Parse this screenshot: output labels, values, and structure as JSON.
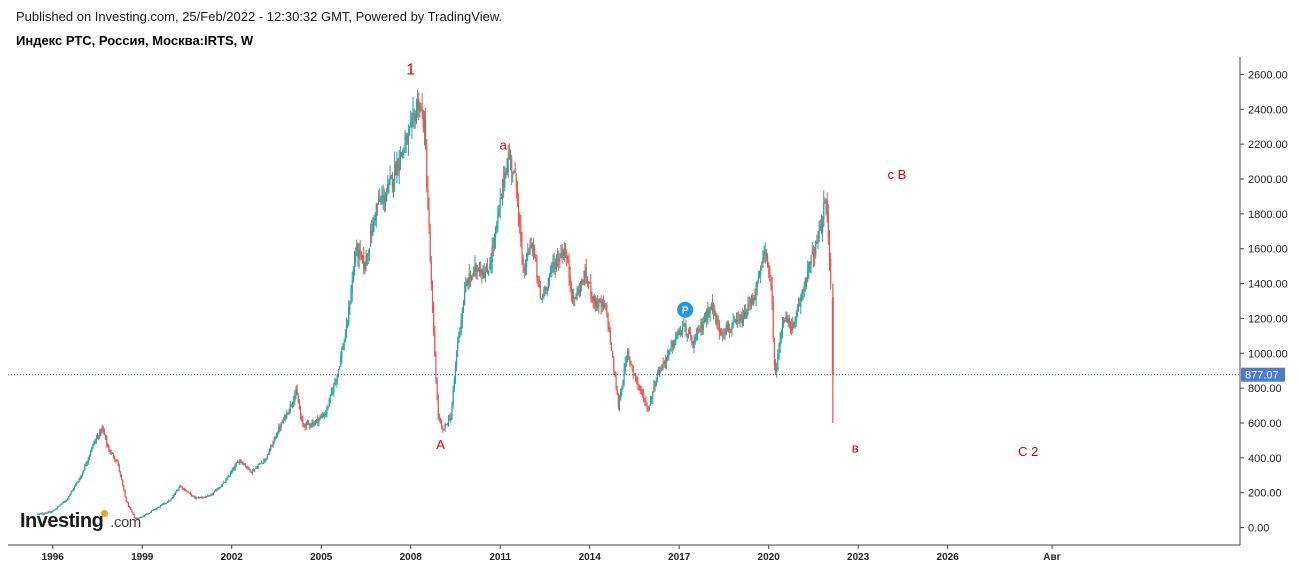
{
  "header": {
    "published": "Published on Investing.com, 25/Feb/2022 - 12:30:32 GMT, Powered by TradingView.",
    "title": "Индекс РТС, Россия, Москва:IRTS, W"
  },
  "logo": {
    "brand": "Investing",
    "tld": ".com"
  },
  "colors": {
    "up": "#26a69a",
    "down": "#ef5350",
    "price_line": "#1f4e8c",
    "price_tag_bg": "#4a7bd0",
    "annotation": "#e00000",
    "marker": "#2196f3"
  },
  "chart_data": {
    "type": "candlestick",
    "title": "Индекс РТС, Россия, Москва:IRTS, W",
    "xlabel": "",
    "ylabel": "",
    "ylim": [
      -100,
      2700
    ],
    "xlim": [
      1994.5,
      2035.8
    ],
    "grid": false,
    "y_ticks": [
      "2600.00",
      "2400.00",
      "2200.00",
      "2000.00",
      "1800.00",
      "1600.00",
      "1400.00",
      "1200.00",
      "1000.00",
      "800.00",
      "600.00",
      "400.00",
      "200.00",
      "0.00"
    ],
    "x_ticks": [
      {
        "label": "1996",
        "x": 1996
      },
      {
        "label": "1999",
        "x": 1999
      },
      {
        "label": "2002",
        "x": 2002
      },
      {
        "label": "2005",
        "x": 2005
      },
      {
        "label": "2008",
        "x": 2008
      },
      {
        "label": "2011",
        "x": 2011
      },
      {
        "label": "2014",
        "x": 2014
      },
      {
        "label": "2017",
        "x": 2017
      },
      {
        "label": "2020",
        "x": 2020
      },
      {
        "label": "2023",
        "x": 2023
      },
      {
        "label": "2026",
        "x": 2026
      },
      {
        "label": "Авг",
        "x": 2029.5
      }
    ],
    "last_price": 877.07,
    "last_price_label": "877.07",
    "path": [
      [
        1995.5,
        75
      ],
      [
        1996.0,
        90
      ],
      [
        1996.5,
        160
      ],
      [
        1997.0,
        300
      ],
      [
        1997.4,
        480
      ],
      [
        1997.7,
        570
      ],
      [
        1997.9,
        450
      ],
      [
        1998.2,
        380
      ],
      [
        1998.5,
        150
      ],
      [
        1998.8,
        50
      ],
      [
        1999.0,
        60
      ],
      [
        1999.5,
        110
      ],
      [
        2000.0,
        160
      ],
      [
        2000.3,
        240
      ],
      [
        2000.8,
        170
      ],
      [
        2001.3,
        180
      ],
      [
        2001.8,
        260
      ],
      [
        2002.3,
        390
      ],
      [
        2002.7,
        320
      ],
      [
        2003.2,
        400
      ],
      [
        2003.6,
        560
      ],
      [
        2003.9,
        660
      ],
      [
        2004.2,
        780
      ],
      [
        2004.4,
        590
      ],
      [
        2004.8,
        600
      ],
      [
        2005.2,
        660
      ],
      [
        2005.6,
        900
      ],
      [
        2005.9,
        1150
      ],
      [
        2006.2,
        1600
      ],
      [
        2006.5,
        1500
      ],
      [
        2006.9,
        1850
      ],
      [
        2007.2,
        1900
      ],
      [
        2007.6,
        2100
      ],
      [
        2008.0,
        2250
      ],
      [
        2008.3,
        2450
      ],
      [
        2008.5,
        2300
      ],
      [
        2008.75,
        1300
      ],
      [
        2008.95,
        650
      ],
      [
        2009.1,
        550
      ],
      [
        2009.4,
        650
      ],
      [
        2009.6,
        1050
      ],
      [
        2009.9,
        1400
      ],
      [
        2010.3,
        1500
      ],
      [
        2010.6,
        1450
      ],
      [
        2010.9,
        1700
      ],
      [
        2011.2,
        2050
      ],
      [
        2011.35,
        2130
      ],
      [
        2011.6,
        1950
      ],
      [
        2011.8,
        1450
      ],
      [
        2012.1,
        1650
      ],
      [
        2012.4,
        1300
      ],
      [
        2012.8,
        1500
      ],
      [
        2013.2,
        1600
      ],
      [
        2013.5,
        1300
      ],
      [
        2013.9,
        1450
      ],
      [
        2014.2,
        1300
      ],
      [
        2014.6,
        1250
      ],
      [
        2014.85,
        900
      ],
      [
        2015.0,
        700
      ],
      [
        2015.3,
        1000
      ],
      [
        2015.7,
        800
      ],
      [
        2016.0,
        680
      ],
      [
        2016.3,
        880
      ],
      [
        2016.7,
        1000
      ],
      [
        2016.95,
        1100
      ],
      [
        2017.2,
        1150
      ],
      [
        2017.5,
        1050
      ],
      [
        2017.9,
        1200
      ],
      [
        2018.1,
        1280
      ],
      [
        2018.4,
        1130
      ],
      [
        2018.8,
        1150
      ],
      [
        2019.2,
        1200
      ],
      [
        2019.6,
        1350
      ],
      [
        2019.95,
        1600
      ],
      [
        2020.15,
        1300
      ],
      [
        2020.25,
        850
      ],
      [
        2020.5,
        1200
      ],
      [
        2020.9,
        1150
      ],
      [
        2021.3,
        1450
      ],
      [
        2021.6,
        1600
      ],
      [
        2021.8,
        1720
      ],
      [
        2021.95,
        1900
      ],
      [
        2022.05,
        1650
      ],
      [
        2022.12,
        1400
      ],
      [
        2022.15,
        1320
      ]
    ],
    "crash_candle": {
      "x": 2022.15,
      "open": 1320,
      "high": 1400,
      "low": 600,
      "close": 877.07
    },
    "annotations": [
      {
        "text": "1",
        "x": 2008.0,
        "y": 2600
      },
      {
        "text": "а",
        "x": 2011.1,
        "y": 2170
      },
      {
        "text": "А",
        "x": 2009.0,
        "y": 450
      },
      {
        "text": "с В",
        "x": 2024.3,
        "y": 2000
      },
      {
        "text": "в",
        "x": 2022.9,
        "y": 430
      },
      {
        "text": "С 2",
        "x": 2028.7,
        "y": 410
      }
    ],
    "event_marker": {
      "x": 2017.2,
      "y": 1250,
      "label": "P"
    }
  }
}
